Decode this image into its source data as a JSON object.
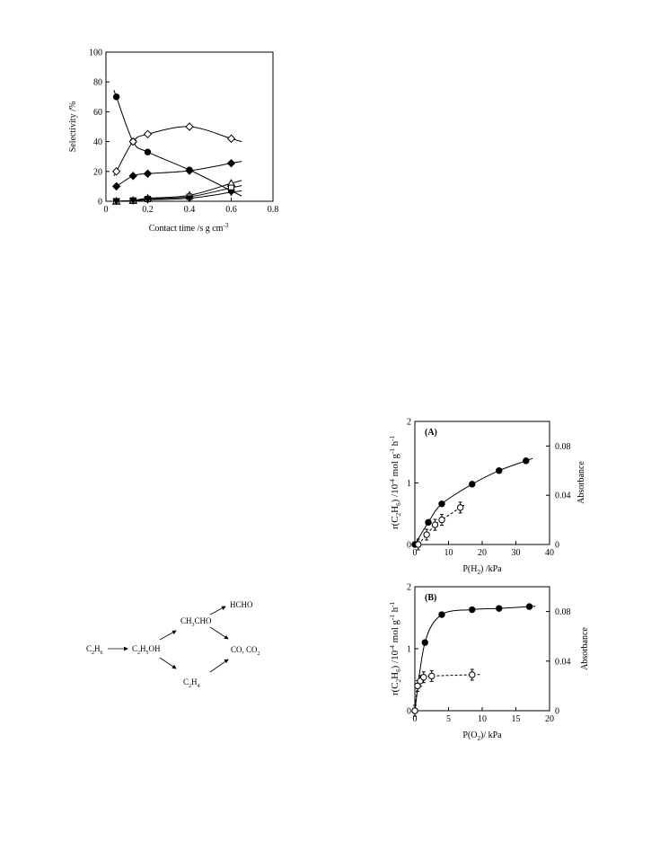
{
  "chart_data": [
    {
      "type": "scatter",
      "xlabel": "Contact time /s g cm",
      "xlabel_sup": "-3",
      "ylabel": "Selectivity /%",
      "xlim": [
        0,
        0.8
      ],
      "ylim": [
        0,
        100
      ],
      "xticks": [
        "0",
        "0.2",
        "0.4",
        "0.6",
        "0.8"
      ],
      "yticks": [
        "0",
        "20",
        "40",
        "60",
        "80",
        "100"
      ],
      "series": [
        {
          "marker": "filled-circle",
          "points": [
            [
              0.05,
              70
            ],
            [
              0.13,
              40
            ],
            [
              0.2,
              33
            ],
            [
              0.4,
              21
            ],
            [
              0.6,
              7
            ]
          ]
        },
        {
          "marker": "open-diamond",
          "points": [
            [
              0.05,
              20
            ],
            [
              0.13,
              40
            ],
            [
              0.2,
              45
            ],
            [
              0.4,
              50
            ],
            [
              0.6,
              42
            ]
          ]
        },
        {
          "marker": "filled-diamond",
          "points": [
            [
              0.05,
              10
            ],
            [
              0.13,
              17
            ],
            [
              0.2,
              18.5
            ],
            [
              0.4,
              20.5
            ],
            [
              0.6,
              25.5
            ]
          ]
        },
        {
          "marker": "open-triangle",
          "points": [
            [
              0.05,
              0
            ],
            [
              0.13,
              0.5
            ],
            [
              0.2,
              2
            ],
            [
              0.4,
              4
            ],
            [
              0.6,
              12
            ]
          ]
        },
        {
          "marker": "open-square",
          "points": [
            [
              0.05,
              0
            ],
            [
              0.13,
              0.5
            ],
            [
              0.2,
              1.5
            ],
            [
              0.4,
              3
            ],
            [
              0.6,
              9
            ]
          ]
        },
        {
          "marker": "filled-triangle-down",
          "points": [
            [
              0.05,
              0
            ],
            [
              0.13,
              0.3
            ],
            [
              0.2,
              1
            ],
            [
              0.4,
              2
            ],
            [
              0.6,
              6
            ]
          ]
        }
      ]
    },
    {
      "type": "scatter",
      "panel_label": "(A)",
      "xlabel": "P(H",
      "xlabel_sub": "2",
      "xlabel_end": ") /kPa",
      "ylabel_left": "r(C2H6) /10-4 mol g-1 h-1",
      "ylabel_right": "Absorbance",
      "xlim": [
        0,
        40
      ],
      "ylim": [
        0,
        2
      ],
      "ylim_right": [
        0,
        0.1
      ],
      "xticks": [
        "0",
        "10",
        "20",
        "30",
        "40"
      ],
      "yticks": [
        "0",
        "1",
        "2"
      ],
      "yticks_right": [
        "0",
        "0.04",
        "0.08"
      ],
      "series": [
        {
          "marker": "filled-circle",
          "axis": "left",
          "points": [
            [
              0,
              0
            ],
            [
              4,
              0.36
            ],
            [
              8,
              0.66
            ],
            [
              17,
              0.98
            ],
            [
              25,
              1.2
            ],
            [
              33,
              1.36
            ]
          ]
        },
        {
          "marker": "open-circle",
          "axis": "right",
          "points": [
            [
              1,
              0
            ],
            [
              3.5,
              0.008
            ],
            [
              6,
              0.016
            ],
            [
              8,
              0.02
            ],
            [
              13.5,
              0.03
            ]
          ]
        }
      ]
    },
    {
      "type": "scatter",
      "panel_label": "(B)",
      "xlabel": "P(O",
      "xlabel_sub": "2",
      "xlabel_end": ")/ kPa",
      "ylabel_left": "r(C2H6) /10-4 mol g-1 h-1",
      "ylabel_right": "Absorbance",
      "xlim": [
        0,
        20
      ],
      "ylim": [
        0,
        2
      ],
      "ylim_right": [
        0,
        0.1
      ],
      "xticks": [
        "0",
        "5",
        "10",
        "15",
        "20"
      ],
      "yticks": [
        "0",
        "1",
        "2"
      ],
      "yticks_right": [
        "0",
        "0.04",
        "0.08"
      ],
      "series": [
        {
          "marker": "filled-circle",
          "axis": "left",
          "points": [
            [
              0,
              0
            ],
            [
              1.5,
              1.1
            ],
            [
              4,
              1.55
            ],
            [
              8.5,
              1.63
            ],
            [
              12.5,
              1.65
            ],
            [
              17,
              1.68
            ]
          ]
        },
        {
          "marker": "open-circle",
          "axis": "right",
          "points": [
            [
              0,
              0
            ],
            [
              0.4,
              0.02
            ],
            [
              0.8,
              0.024
            ],
            [
              1.3,
              0.027
            ],
            [
              2.5,
              0.028
            ],
            [
              8.5,
              0.029
            ]
          ]
        }
      ]
    }
  ],
  "scheme": {
    "c2h6": "C2H6",
    "c2h5oh": "C2H5OH",
    "ch3cho": "CH3CHO",
    "hcho": "HCHO",
    "cox": "CO, CO2",
    "c2h4": "C2H4"
  }
}
